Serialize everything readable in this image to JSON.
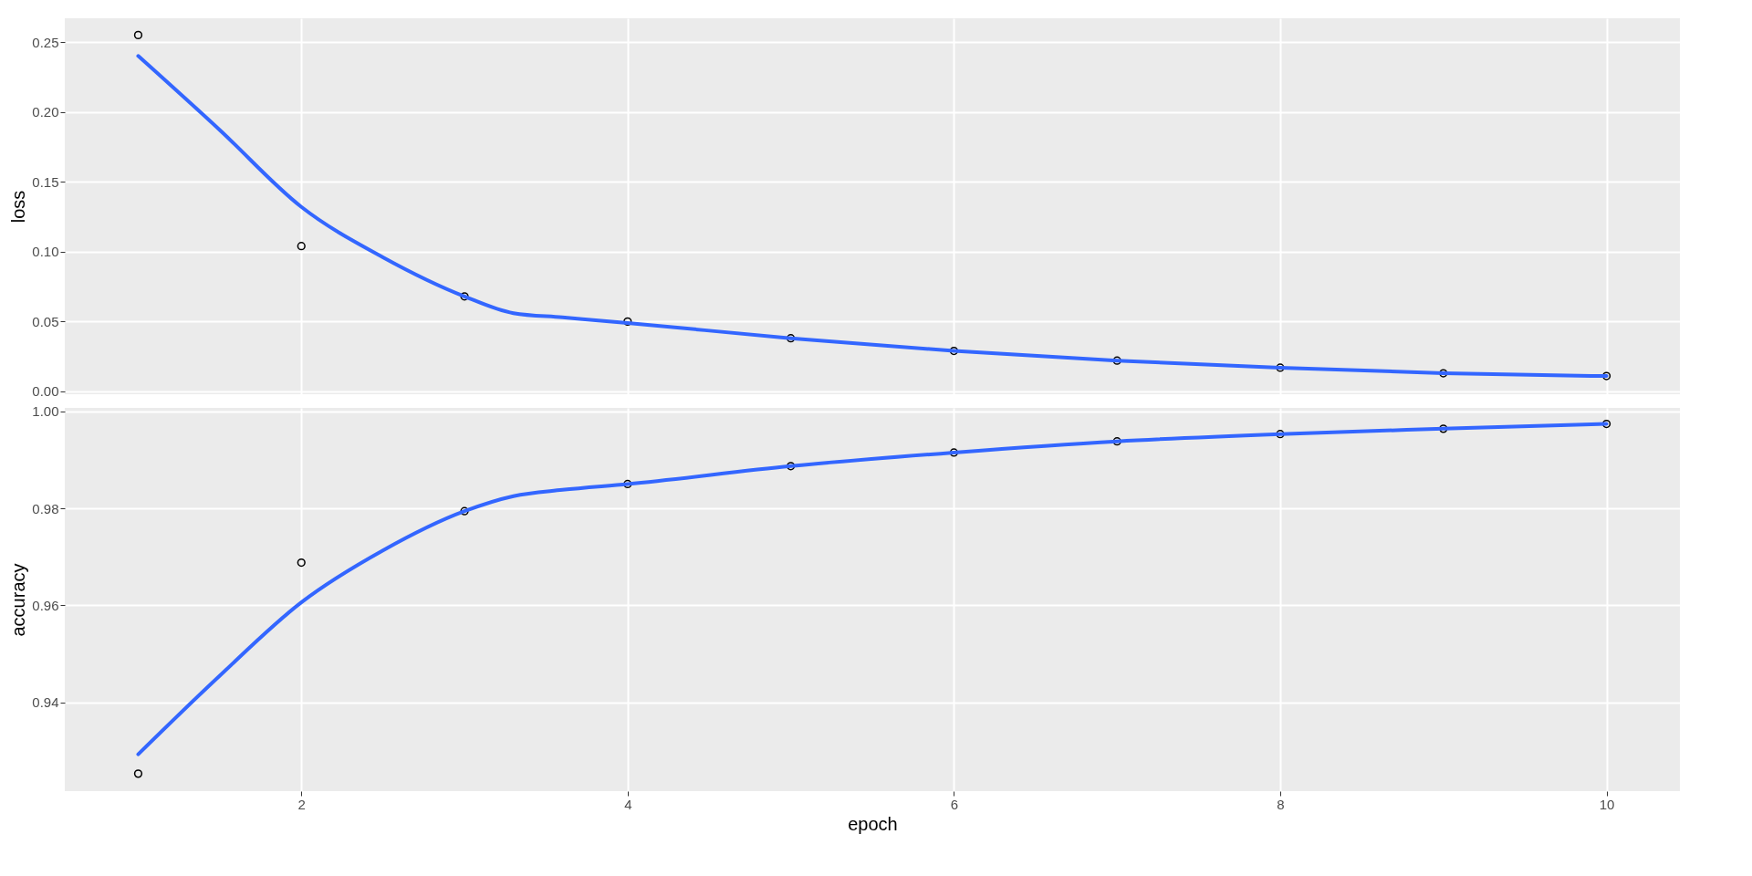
{
  "chart_data": [
    {
      "type": "scatter",
      "ylabel": "loss",
      "xlim": [
        0.55,
        10.45
      ],
      "xticks": [
        2,
        4,
        6,
        8,
        10
      ],
      "ylim": [
        -0.002,
        0.267
      ],
      "yticks": [
        {
          "value": 0,
          "label": "0.00"
        },
        {
          "value": 0.05,
          "label": "0.05"
        },
        {
          "value": 0.1,
          "label": "0.10"
        },
        {
          "value": 0.15,
          "label": "0.15"
        },
        {
          "value": 0.2,
          "label": "0.20"
        },
        {
          "value": 0.25,
          "label": "0.25"
        }
      ],
      "grid": true,
      "tick_labels": "y",
      "series": [
        {
          "type": "scatter",
          "marker": "circle",
          "color": "#000000",
          "x": [
            1,
            2,
            3,
            4,
            5,
            6,
            7,
            8,
            9,
            10
          ],
          "values": [
            0.255,
            0.104,
            0.068,
            0.05,
            0.038,
            0.029,
            0.022,
            0.017,
            0.013,
            0.011
          ]
        },
        {
          "type": "line",
          "line_style": "solid",
          "color": "#3366ff",
          "x": [
            1,
            1.5,
            2,
            2.5,
            3,
            3.3,
            3.6,
            4,
            5,
            6,
            7,
            8,
            9,
            10
          ],
          "values": [
            0.24,
            0.187,
            0.132,
            0.096,
            0.068,
            0.056,
            0.053,
            0.049,
            0.038,
            0.029,
            0.022,
            0.017,
            0.013,
            0.011
          ]
        }
      ]
    },
    {
      "type": "scatter",
      "xlabel": "epoch",
      "ylabel": "accuracy",
      "xlim": [
        0.55,
        10.45
      ],
      "xticks": [
        2,
        4,
        6,
        8,
        10
      ],
      "ylim": [
        0.9217,
        1.0007
      ],
      "yticks": [
        0.94,
        0.96,
        0.98,
        {
          "value": 1,
          "label": "1.00"
        }
      ],
      "grid": true,
      "series": [
        {
          "type": "scatter",
          "marker": "circle",
          "color": "#000000",
          "x": [
            1,
            2,
            3,
            4,
            5,
            6,
            7,
            8,
            9,
            10
          ],
          "values": [
            0.9253,
            0.9688,
            0.9794,
            0.985,
            0.9887,
            0.9915,
            0.9938,
            0.9953,
            0.9964,
            0.9974
          ]
        },
        {
          "type": "line",
          "line_style": "solid",
          "color": "#3366ff",
          "x": [
            1,
            1.5,
            2,
            2.5,
            3,
            3.3,
            3.6,
            4,
            5,
            6,
            7,
            8,
            9,
            10
          ],
          "values": [
            0.9293,
            0.9455,
            0.9606,
            0.9713,
            0.9794,
            0.9825,
            0.9838,
            0.985,
            0.9887,
            0.9915,
            0.9938,
            0.9953,
            0.9964,
            0.9974
          ]
        }
      ]
    }
  ]
}
